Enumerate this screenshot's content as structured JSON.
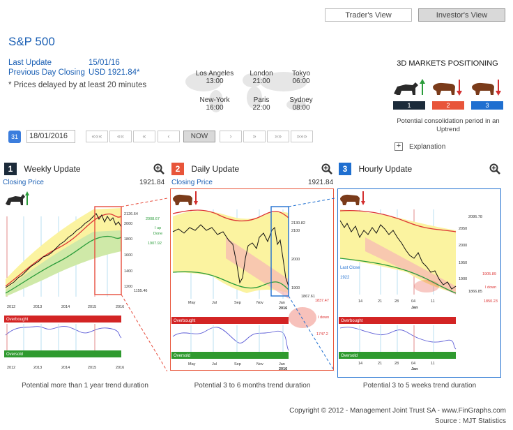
{
  "header": {
    "trader_view": "Trader's View",
    "investor_view": "Investor's View",
    "title": "S&P 500"
  },
  "info": {
    "last_update_label": "Last Update",
    "last_update_value": "15/01/16",
    "prev_close_label": "Previous Day Closing",
    "prev_close_value": "USD 1921.84*",
    "delay_note": "* Prices delayed by at least 20 minutes"
  },
  "world": {
    "cities": [
      {
        "name": "Los Angeles",
        "time": "13:00"
      },
      {
        "name": "London",
        "time": "21:00"
      },
      {
        "name": "Tokyo",
        "time": "06:00"
      },
      {
        "name": "New-York",
        "time": "16:00"
      },
      {
        "name": "Paris",
        "time": "22:00"
      },
      {
        "name": "Sydney",
        "time": "08:00"
      }
    ]
  },
  "positioning": {
    "title": "3D MARKETS POSITIONING",
    "boxes": [
      "1",
      "2",
      "3"
    ],
    "colors": [
      "#1c2b3a",
      "#e8553a",
      "#1f6fd0"
    ],
    "description": "Potential consolidation period in an Uptrend",
    "explanation": "Explanation"
  },
  "datebar": {
    "calendar_day": "31",
    "date": "18/01/2016",
    "now": "NOW",
    "nav": [
      "«««",
      "««",
      "«",
      "‹",
      "›",
      "»",
      "»»",
      "»»»"
    ]
  },
  "panels": [
    {
      "num": "1",
      "title": "Weekly Update",
      "closing_label": "Closing Price",
      "closing_value": "1921.84",
      "ticks_x": [
        "2012",
        "2013",
        "2014",
        "2015",
        "2016"
      ],
      "ticks_y": [
        "2126.64",
        "2000",
        "2008.67",
        "I up",
        "Done",
        "1907.92",
        "1800",
        "1600",
        "1400",
        "1200",
        "1155.46"
      ],
      "osc_x": [
        "2012",
        "2013",
        "2014",
        "2015",
        "2016"
      ],
      "overbought": "Overbought",
      "oversold": "Oversold",
      "caption": "Potential more than 1 year trend duration"
    },
    {
      "num": "2",
      "title": "Daily Update",
      "closing_label": "Closing Price",
      "closing_value": "1921.84",
      "ticks_x": [
        "May",
        "Jul",
        "Sep",
        "Nov",
        "Jan",
        "2016"
      ],
      "ticks_y": [
        "2130.82",
        "2100",
        "2000",
        "1900",
        "1867.61",
        "1837.47",
        "I down",
        "1747.2"
      ],
      "osc_x": [
        "May",
        "Jul",
        "Sep",
        "Nov",
        "Jan",
        "2016"
      ],
      "overbought": "Overbought",
      "oversold": "Oversold",
      "caption": "Potential 3 to 6 months trend duration"
    },
    {
      "num": "3",
      "title": "Hourly Update",
      "last_close_label": "Last Close",
      "last_close_value": "1922",
      "ticks_x": [
        "14",
        "21",
        "28",
        "04",
        "11",
        "Jan"
      ],
      "ticks_y": [
        "2086.78",
        "2050",
        "2000",
        "1950",
        "1905.89",
        "I down",
        "1900",
        "1866.85",
        "1850.23"
      ],
      "osc_x": [
        "14",
        "21",
        "28",
        "04",
        "11",
        "Jan"
      ],
      "overbought": "Overbought",
      "oversold": "Oversold",
      "caption": "Potential 3 to 5 weeks trend duration"
    }
  ],
  "footer": {
    "copyright": "Copyright © 2012 - Management Joint Trust SA - www.FinGraphs.com",
    "source": "Source : MJT Statistics"
  }
}
